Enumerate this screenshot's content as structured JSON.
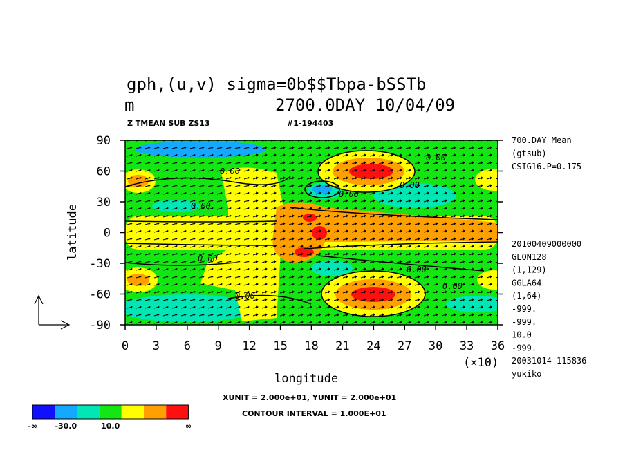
{
  "chart_data": {
    "type": "contour",
    "title_lines": [
      "gph,(u,v)  sigma=0b$$Tbpa-bSSTb",
      "m",
      "2700.0DAY 10/04/09"
    ],
    "header_left": "Z TMEAN SUB ZS13",
    "header_center": "#1-194403",
    "xlabel": "longitude",
    "ylabel": "latitude",
    "x_multiplier": "(×10)",
    "xlim": [
      0,
      36
    ],
    "xticks": [
      0,
      3,
      6,
      9,
      12,
      15,
      18,
      21,
      24,
      27,
      30,
      33,
      36
    ],
    "ylim": [
      -90,
      90
    ],
    "yticks": [
      -90,
      -60,
      -30,
      0,
      30,
      60,
      90
    ],
    "info_top": [
      "700.DAY Mean",
      "(gtsub)",
      "CSIG16.P=0.175"
    ],
    "info_bottom": [
      "20100409000000",
      "GLON128",
      "(1,129)",
      "GGLA64",
      "(1,64)",
      "-999.",
      "-999.",
      "10.0",
      "-999.",
      "20031014 115836",
      "yukiko"
    ],
    "units_note": "XUNIT = 2.000e+01, YUNIT = 2.000e+01",
    "contour_interval": "CONTOUR INTERVAL = 1.000E+01",
    "contour_labels": [
      "0.00",
      "0.00",
      "0.00",
      "0.00",
      "0.00",
      "0.00",
      "0.00",
      "0.00",
      "0.00"
    ],
    "colorbar_colors": [
      "#1010ff",
      "#14a8ff",
      "#00e6b4",
      "#14e614",
      "#ffff00",
      "#ffa000",
      "#ff1010"
    ],
    "colorbar_labels": [
      "-∞",
      "-30.0",
      "10.0",
      "∞"
    ]
  }
}
